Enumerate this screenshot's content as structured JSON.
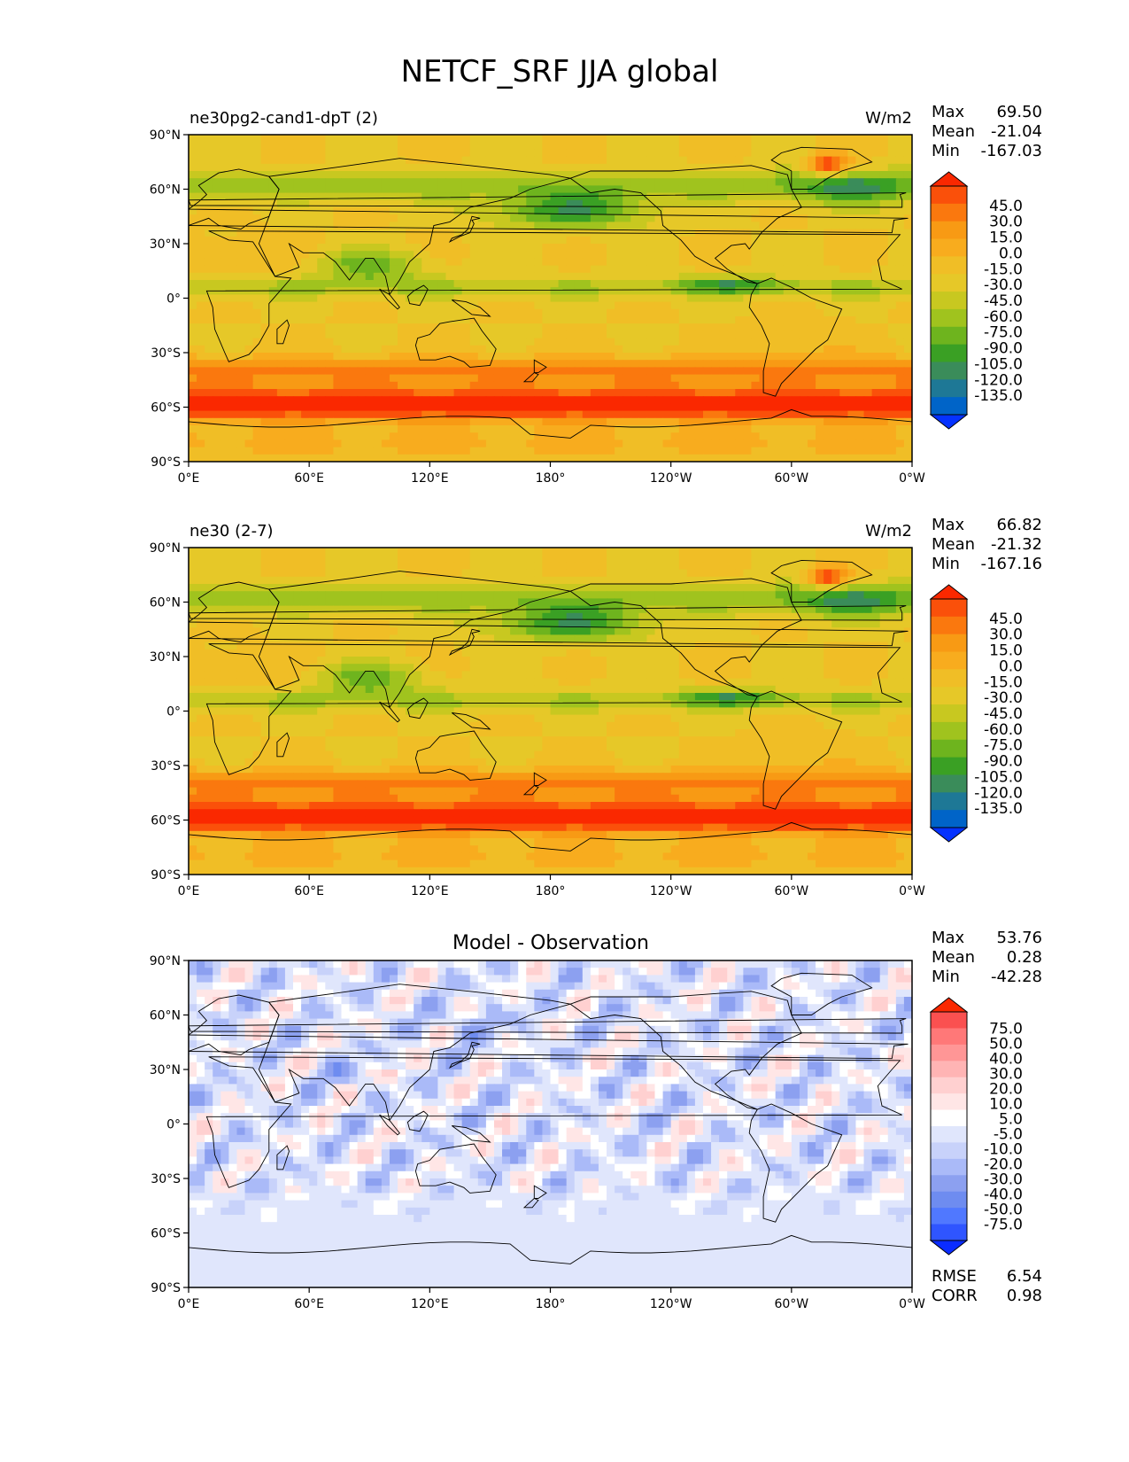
{
  "title": "NETCF_SRF JJA global",
  "colors": {
    "main_levels": [
      "#0532ff",
      "#0064c8",
      "#1e7896",
      "#3a8c5a",
      "#3aa024",
      "#6eb41e",
      "#a0c31e",
      "#c8c820",
      "#e6c828",
      "#f0be26",
      "#f8ac1e",
      "#f89a14",
      "#fa780e",
      "#fa500a",
      "#fa2800"
    ],
    "diff_levels": [
      "#0a2cff",
      "#2f55ff",
      "#5078ff",
      "#6e8cf0",
      "#8ca0f0",
      "#aabaf8",
      "#c8d2fa",
      "#e0e6fc",
      "#ffffff",
      "#ffe6e6",
      "#ffd0d0",
      "#ffb4b4",
      "#ff9696",
      "#ff7878",
      "#fa5050",
      "#fa2800"
    ],
    "land_outline": "#000000"
  },
  "axes": {
    "lat_ticks": [
      "90°N",
      "60°N",
      "30°N",
      "0°",
      "30°S",
      "60°S",
      "90°S"
    ],
    "lon_ticks": [
      "0°E",
      "60°E",
      "120°E",
      "180°",
      "120°W",
      "60°W",
      "0°W"
    ]
  },
  "panels": [
    {
      "id": "test",
      "left_title": "ne30pg2-cand1-dpT (2)",
      "center_title": "",
      "units": "W/m2",
      "stats": [
        {
          "label": "Max",
          "value": "69.50"
        },
        {
          "label": "Mean",
          "value": "-21.04"
        },
        {
          "label": "Min",
          "value": "-167.03"
        }
      ],
      "colorbar_labels": [
        "45.0",
        "30.0",
        "15.0",
        "0.0",
        "-15.0",
        "-30.0",
        "-45.0",
        "-60.0",
        "-75.0",
        "-90.0",
        "-105.0",
        "-120.0",
        "-135.0"
      ],
      "footer": []
    },
    {
      "id": "reference",
      "left_title": "ne30 (2-7)",
      "center_title": "",
      "units": "W/m2",
      "stats": [
        {
          "label": "Max",
          "value": "66.82"
        },
        {
          "label": "Mean",
          "value": "-21.32"
        },
        {
          "label": "Min",
          "value": "-167.16"
        }
      ],
      "colorbar_labels": [
        "45.0",
        "30.0",
        "15.0",
        "0.0",
        "-15.0",
        "-30.0",
        "-45.0",
        "-60.0",
        "-75.0",
        "-90.0",
        "-105.0",
        "-120.0",
        "-135.0"
      ],
      "footer": []
    },
    {
      "id": "difference",
      "left_title": "",
      "center_title": "Model - Observation",
      "units": "",
      "stats": [
        {
          "label": "Max",
          "value": "53.76"
        },
        {
          "label": "Mean",
          "value": "0.28"
        },
        {
          "label": "Min",
          "value": "-42.28"
        }
      ],
      "colorbar_labels": [
        "75.0",
        "50.0",
        "40.0",
        "30.0",
        "20.0",
        "10.0",
        "5.0",
        "-5.0",
        "-10.0",
        "-20.0",
        "-30.0",
        "-40.0",
        "-50.0",
        "-75.0"
      ],
      "footer": [
        {
          "label": "RMSE",
          "value": "6.54"
        },
        {
          "label": "CORR",
          "value": "0.98"
        }
      ]
    }
  ]
}
